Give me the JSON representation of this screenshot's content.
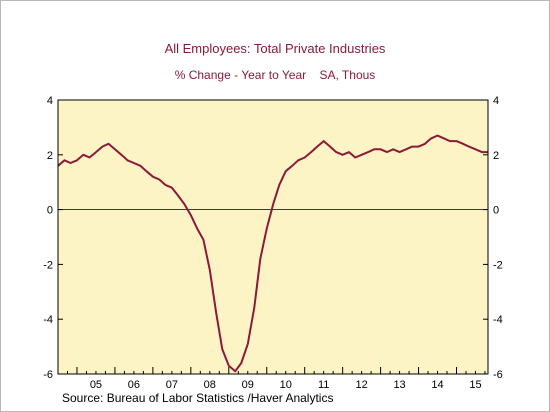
{
  "chart_data": {
    "type": "line",
    "title": "All Employees: Total Private Industries",
    "subtitle": "% Change - Year to Year    SA, Thous",
    "source": "Source:  Bureau of Labor Statistics /Haver Analytics",
    "ylim": [
      -6,
      4
    ],
    "yticks": [
      4,
      2,
      0,
      -2,
      -4,
      -6
    ],
    "ytick_labels": [
      "4",
      "2",
      "0",
      "-2",
      "-4",
      "-6"
    ],
    "xlim": [
      2004.5,
      2015.83
    ],
    "xtick_labels": [
      "05",
      "06",
      "07",
      "08",
      "09",
      "10",
      "11",
      "12",
      "13",
      "14",
      "15"
    ],
    "xtick_centers": [
      2005.5,
      2006.5,
      2007.5,
      2008.5,
      2009.5,
      2010.5,
      2011.5,
      2012.5,
      2013.5,
      2014.5,
      2015.5
    ],
    "grid": false,
    "zero_line": true,
    "colors": {
      "plot_background": "#fcf4c4",
      "line": "#8b1a3a",
      "title": "#8b1a3a"
    },
    "series": [
      {
        "name": "",
        "x": [
          2004.5,
          2004.67,
          2004.83,
          2005.0,
          2005.17,
          2005.33,
          2005.5,
          2005.67,
          2005.83,
          2006.0,
          2006.17,
          2006.33,
          2006.5,
          2006.67,
          2006.83,
          2007.0,
          2007.17,
          2007.33,
          2007.5,
          2007.67,
          2007.83,
          2008.0,
          2008.17,
          2008.33,
          2008.5,
          2008.67,
          2008.83,
          2009.0,
          2009.17,
          2009.33,
          2009.5,
          2009.67,
          2009.83,
          2010.0,
          2010.17,
          2010.33,
          2010.5,
          2010.67,
          2010.83,
          2011.0,
          2011.17,
          2011.33,
          2011.5,
          2011.67,
          2011.83,
          2012.0,
          2012.17,
          2012.33,
          2012.5,
          2012.67,
          2012.83,
          2013.0,
          2013.17,
          2013.33,
          2013.5,
          2013.67,
          2013.83,
          2014.0,
          2014.17,
          2014.33,
          2014.5,
          2014.67,
          2014.83,
          2015.0,
          2015.17,
          2015.33,
          2015.5,
          2015.67,
          2015.83
        ],
        "y": [
          1.6,
          1.8,
          1.7,
          1.8,
          2.0,
          1.9,
          2.1,
          2.3,
          2.4,
          2.2,
          2.0,
          1.8,
          1.7,
          1.6,
          1.4,
          1.2,
          1.1,
          0.9,
          0.8,
          0.5,
          0.2,
          -0.2,
          -0.7,
          -1.1,
          -2.2,
          -3.8,
          -5.1,
          -5.7,
          -5.9,
          -5.6,
          -4.9,
          -3.6,
          -1.8,
          -0.7,
          0.2,
          0.9,
          1.4,
          1.6,
          1.8,
          1.9,
          2.1,
          2.3,
          2.5,
          2.3,
          2.1,
          2.0,
          2.1,
          1.9,
          2.0,
          2.1,
          2.2,
          2.2,
          2.1,
          2.2,
          2.1,
          2.2,
          2.3,
          2.3,
          2.4,
          2.6,
          2.7,
          2.6,
          2.5,
          2.5,
          2.4,
          2.3,
          2.2,
          2.1,
          2.1
        ]
      }
    ]
  }
}
